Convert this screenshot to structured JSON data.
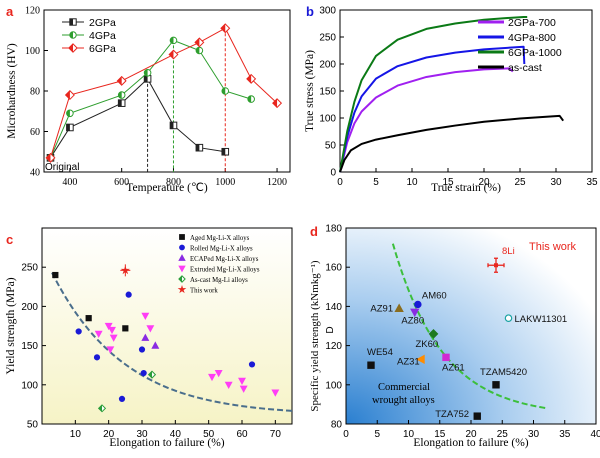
{
  "chart_data": [
    {
      "panel": "a",
      "type": "line",
      "xlabel": "Temperature (℃)",
      "ylabel": "Microhardness (HV)",
      "xlim": [
        300,
        1250
      ],
      "ylim": [
        40,
        120
      ],
      "xticks": [
        400,
        600,
        800,
        1000,
        1200
      ],
      "yticks": [
        40,
        60,
        80,
        100,
        120
      ],
      "legend_position": "top-left",
      "annotations": [
        "Original"
      ],
      "guide_lines_x": [
        700,
        800,
        1000
      ],
      "series": [
        {
          "name": "2GPa",
          "color": "#222222",
          "marker": "square-half",
          "x": [
            325,
            400,
            600,
            700,
            800,
            900,
            1000
          ],
          "y": [
            47,
            62,
            74,
            86,
            63,
            52,
            50
          ]
        },
        {
          "name": "4GPa",
          "color": "#2e9e2e",
          "marker": "circle-half",
          "x": [
            325,
            400,
            600,
            700,
            800,
            900,
            1000,
            1100
          ],
          "y": [
            47,
            69,
            78,
            89,
            105,
            100,
            80,
            76
          ]
        },
        {
          "name": "6GPa",
          "color": "#e8261e",
          "marker": "diamond-half",
          "x": [
            325,
            400,
            600,
            800,
            900,
            1000,
            1100,
            1200
          ],
          "y": [
            47,
            78,
            85,
            98,
            104,
            111,
            86,
            74
          ]
        }
      ]
    },
    {
      "panel": "b",
      "type": "line",
      "xlabel": "True strain (%)",
      "ylabel": "True stress (MPa)",
      "xlim": [
        0,
        35
      ],
      "ylim": [
        0,
        300
      ],
      "xticks": [
        0,
        5,
        10,
        15,
        20,
        25,
        30,
        35
      ],
      "yticks": [
        0,
        50,
        100,
        150,
        200,
        250,
        300
      ],
      "legend_position": "top-right",
      "series": [
        {
          "name": "2GPa-700",
          "color": "#a020f0",
          "x": [
            0,
            1,
            2,
            3,
            5,
            8,
            12,
            16,
            20,
            23.5,
            24
          ],
          "y": [
            0,
            55,
            90,
            112,
            138,
            160,
            176,
            185,
            190,
            192,
            186
          ]
        },
        {
          "name": "4GPa-800",
          "color": "#1515e6",
          "x": [
            0,
            1,
            2,
            3,
            5,
            8,
            12,
            16,
            20,
            25.5,
            25.6
          ],
          "y": [
            0,
            65,
            110,
            140,
            173,
            196,
            212,
            221,
            227,
            232,
            200
          ]
        },
        {
          "name": "6GPa-1000",
          "color": "#0b7a16",
          "x": [
            0,
            1,
            2,
            3,
            5,
            8,
            12,
            16,
            20,
            23,
            25.5,
            26
          ],
          "y": [
            0,
            75,
            130,
            170,
            215,
            245,
            265,
            275,
            282,
            285,
            287,
            287
          ]
        },
        {
          "name": "as-cast",
          "color": "#000000",
          "x": [
            0,
            0.6,
            1.5,
            3,
            5,
            8,
            12,
            16,
            20,
            25,
            30.5,
            31
          ],
          "y": [
            0,
            22,
            40,
            52,
            60,
            68,
            78,
            86,
            93,
            99,
            104,
            95
          ]
        }
      ]
    },
    {
      "panel": "c",
      "type": "scatter",
      "xlabel": "Elongation to failure (%)",
      "ylabel": "Yield strength (MPa)",
      "xlim": [
        0,
        75
      ],
      "ylim": [
        50,
        300
      ],
      "xticks": [
        10,
        20,
        30,
        40,
        50,
        60,
        70
      ],
      "yticks": [
        50,
        100,
        150,
        200,
        250
      ],
      "legend_position": "top-right",
      "series": [
        {
          "name": "Aged Mg-Li-X alloys",
          "color": "#111111",
          "marker": "square",
          "points": [
            [
              4,
              240
            ],
            [
              14,
              185
            ],
            [
              25,
              172
            ]
          ]
        },
        {
          "name": "Rolled Mg-Li-X alloys",
          "color": "#1a1ad6",
          "marker": "circle",
          "points": [
            [
              11,
              168
            ],
            [
              16.5,
              135
            ],
            [
              26,
              215
            ],
            [
              30,
              145
            ],
            [
              30.5,
              115
            ],
            [
              24,
              82
            ],
            [
              63,
              126
            ]
          ]
        },
        {
          "name": "ECAPed Mg-Li-X alloys",
          "color": "#8a2be2",
          "marker": "triangle",
          "points": [
            [
              31,
              160
            ],
            [
              34,
              150
            ]
          ]
        },
        {
          "name": "Extruded Mg-Li-X alloys",
          "color": "#ff3df5",
          "marker": "triangle-down",
          "points": [
            [
              20,
              175
            ],
            [
              21,
              170
            ],
            [
              17,
              165
            ],
            [
              21.5,
              160
            ],
            [
              20.5,
              145
            ],
            [
              31,
              188
            ],
            [
              32.5,
              172
            ],
            [
              51,
              110
            ],
            [
              53,
              115
            ],
            [
              56,
              100
            ],
            [
              60,
              105
            ],
            [
              60.5,
              95
            ],
            [
              70,
              90
            ]
          ]
        },
        {
          "name": "As-cast Mg-Li alloys",
          "color": "#2a9d3a",
          "marker": "diamond-half",
          "points": [
            [
              18,
              70
            ],
            [
              33,
              113
            ]
          ]
        },
        {
          "name": "This work",
          "color": "#e8261e",
          "marker": "star",
          "points": [
            [
              25,
              246
            ]
          ]
        }
      ]
    },
    {
      "panel": "d",
      "type": "scatter",
      "xlabel": "Elongation to failure (%)",
      "ylabel": "Specific yield strength (kNmkg⁻¹)",
      "xlim": [
        0,
        40
      ],
      "ylim": [
        80,
        180
      ],
      "xticks": [
        0,
        5,
        10,
        15,
        20,
        25,
        30,
        35,
        40
      ],
      "yticks": [
        80,
        100,
        120,
        140,
        160,
        180
      ],
      "axis_text": "D",
      "annotations": [
        "This work",
        "Commercial wrought alloys"
      ],
      "points": [
        {
          "label": "8Li",
          "x": 24,
          "y": 161,
          "color": "#e8261e",
          "marker": "cross"
        },
        {
          "label": "AM60",
          "x": 11.5,
          "y": 141,
          "color": "#1a1ad6",
          "marker": "circle"
        },
        {
          "label": "AZ91",
          "x": 8.5,
          "y": 139,
          "color": "#8a6d1f",
          "marker": "triangle"
        },
        {
          "label": "AZ80",
          "x": 11,
          "y": 137,
          "color": "#8a2be2",
          "marker": "triangle-down"
        },
        {
          "label": "LAKW11301",
          "x": 26,
          "y": 134,
          "color": "#1aa3a3",
          "marker": "circle-open"
        },
        {
          "label": "ZK60",
          "x": 14,
          "y": 126,
          "color": "#1f7a1f",
          "marker": "diamond"
        },
        {
          "label": "AZ61",
          "x": 16,
          "y": 114,
          "color": "#d22ad2",
          "marker": "square"
        },
        {
          "label": "AZ31",
          "x": 12,
          "y": 113,
          "color": "#ff8c00",
          "marker": "triangle-left"
        },
        {
          "label": "WE54",
          "x": 4,
          "y": 110,
          "color": "#111111",
          "marker": "square"
        },
        {
          "label": "TZAM5420",
          "x": 24,
          "y": 100,
          "color": "#111111",
          "marker": "square"
        },
        {
          "label": "TZA752",
          "x": 21,
          "y": 84,
          "color": "#111111",
          "marker": "square"
        }
      ]
    }
  ]
}
